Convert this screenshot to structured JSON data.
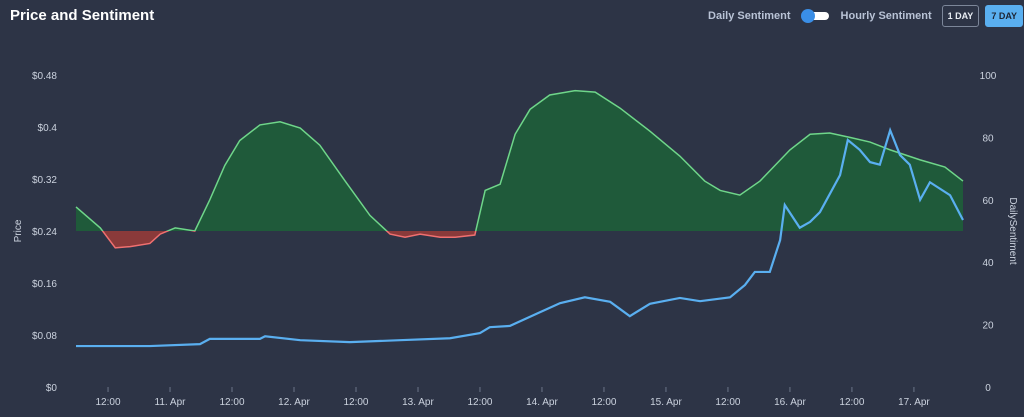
{
  "header": {
    "title": "Price and Sentiment",
    "daily_label": "Daily Sentiment",
    "hourly_label": "Hourly Sentiment",
    "btn_1day": "1 DAY",
    "btn_7day": "7 DAY"
  },
  "colors": {
    "bg": "#2d3446",
    "positive": "#1f5a3a",
    "positive_line": "#6fd68a",
    "negative": "#8a3a3a",
    "negative_line": "#f07070",
    "price": "#5aaff0"
  },
  "chart_data": {
    "type": "line",
    "title": "Price and Sentiment",
    "ylabel": "Price",
    "y2label": "DailySentiment",
    "ylim": [
      0,
      0.48
    ],
    "y2lim": [
      0,
      100
    ],
    "yticks": [
      "$0",
      "$0.08",
      "$0.16",
      "$0.24",
      "$0.32",
      "$0.4",
      "$0.48"
    ],
    "y2ticks": [
      "0",
      "20",
      "40",
      "60",
      "80",
      "100"
    ],
    "x_unit": "hours since 10 Apr 00:00",
    "xlim": [
      5.8,
      177.5
    ],
    "xticks": [
      {
        "h": 12,
        "label": "12:00"
      },
      {
        "h": 24,
        "label": "11. Apr"
      },
      {
        "h": 36,
        "label": "12:00"
      },
      {
        "h": 48,
        "label": "12. Apr"
      },
      {
        "h": 60,
        "label": "12:00"
      },
      {
        "h": 72,
        "label": "13. Apr"
      },
      {
        "h": 84,
        "label": "12:00"
      },
      {
        "h": 96,
        "label": "14. Apr"
      },
      {
        "h": 108,
        "label": "12:00"
      },
      {
        "h": 120,
        "label": "15. Apr"
      },
      {
        "h": 132,
        "label": "12:00"
      },
      {
        "h": 144,
        "label": "16. Apr"
      },
      {
        "h": 156,
        "label": "12:00"
      },
      {
        "h": 168,
        "label": "17. Apr"
      }
    ],
    "sentiment_baseline": 50,
    "series": [
      {
        "name": "Daily Sentiment",
        "axis": "right",
        "points": [
          [
            5.8,
            57.7
          ],
          [
            10.5,
            51
          ],
          [
            13.4,
            44.6
          ],
          [
            16.3,
            45
          ],
          [
            20.1,
            46
          ],
          [
            22.1,
            49
          ],
          [
            25,
            51
          ],
          [
            28.8,
            50
          ],
          [
            31.7,
            60
          ],
          [
            34.6,
            71
          ],
          [
            37.5,
            79
          ],
          [
            41.4,
            84
          ],
          [
            45.3,
            85
          ],
          [
            49.2,
            83
          ],
          [
            53,
            77.5
          ],
          [
            57.9,
            66
          ],
          [
            62.7,
            55
          ],
          [
            66.6,
            49
          ],
          [
            69.5,
            48
          ],
          [
            72.4,
            49
          ],
          [
            76.3,
            48
          ],
          [
            79.2,
            48
          ],
          [
            83,
            48.7
          ],
          [
            85,
            63
          ],
          [
            87.9,
            65
          ],
          [
            90.8,
            81
          ],
          [
            93.7,
            89
          ],
          [
            97.5,
            93.6
          ],
          [
            102.4,
            95
          ],
          [
            106.3,
            94.5
          ],
          [
            111.1,
            89.4
          ],
          [
            116.9,
            82
          ],
          [
            122.7,
            74
          ],
          [
            127.5,
            66
          ],
          [
            130.5,
            63
          ],
          [
            134.3,
            61.5
          ],
          [
            138.2,
            66
          ],
          [
            144,
            76
          ],
          [
            147.9,
            81
          ],
          [
            151.7,
            81.4
          ],
          [
            155.6,
            80
          ],
          [
            159.5,
            78.5
          ],
          [
            163.4,
            76
          ],
          [
            169.2,
            72.8
          ],
          [
            174,
            70.5
          ],
          [
            177.5,
            66
          ]
        ]
      },
      {
        "name": "Price",
        "axis": "left",
        "points": [
          [
            5.8,
            0.063
          ],
          [
            20.1,
            0.063
          ],
          [
            29.8,
            0.066
          ],
          [
            31.7,
            0.074
          ],
          [
            41.4,
            0.074
          ],
          [
            42.4,
            0.078
          ],
          [
            49.2,
            0.072
          ],
          [
            58.8,
            0.069
          ],
          [
            68.5,
            0.072
          ],
          [
            78.2,
            0.075
          ],
          [
            84,
            0.083
          ],
          [
            85.9,
            0.092
          ],
          [
            89.8,
            0.094
          ],
          [
            95.6,
            0.115
          ],
          [
            99.5,
            0.129
          ],
          [
            104.3,
            0.138
          ],
          [
            109.2,
            0.131
          ],
          [
            113,
            0.109
          ],
          [
            116.9,
            0.128
          ],
          [
            122.7,
            0.137
          ],
          [
            126.6,
            0.132
          ],
          [
            132.4,
            0.138
          ],
          [
            135.3,
            0.157
          ],
          [
            137.2,
            0.177
          ],
          [
            140.1,
            0.177
          ],
          [
            142.1,
            0.226
          ],
          [
            143,
            0.28
          ],
          [
            145.9,
            0.245
          ],
          [
            147.9,
            0.254
          ],
          [
            149.8,
            0.269
          ],
          [
            153.7,
            0.326
          ],
          [
            155.2,
            0.38
          ],
          [
            157.5,
            0.365
          ],
          [
            159.5,
            0.346
          ],
          [
            161.4,
            0.342
          ],
          [
            163.4,
            0.395
          ],
          [
            165.3,
            0.357
          ],
          [
            167.2,
            0.342
          ],
          [
            169.2,
            0.288
          ],
          [
            171.1,
            0.315
          ],
          [
            175,
            0.295
          ],
          [
            177.5,
            0.257
          ]
        ]
      }
    ]
  }
}
